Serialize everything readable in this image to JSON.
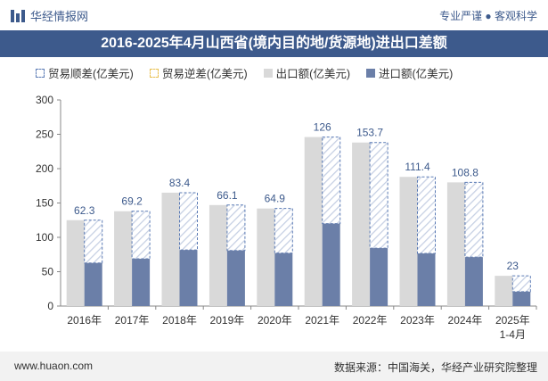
{
  "header": {
    "brand": "华经情报网",
    "tagline": "专业严谨 ● 客观科学"
  },
  "title": "2016-2025年4月山西省(境内目的地/货源地)进出口差额",
  "legend": [
    {
      "label": "贸易顺差(亿美元)",
      "color": "#ffffff",
      "border": "#5b7bb5"
    },
    {
      "label": "贸易逆差(亿美元)",
      "color": "#ffffff",
      "border": "#e8c050"
    },
    {
      "label": "出口额(亿美元)",
      "color": "#d9d9d9",
      "border": "#d9d9d9"
    },
    {
      "label": "进口额(亿美元)",
      "color": "#6b7fa8",
      "border": "#6b7fa8"
    }
  ],
  "footer": {
    "website": "www.huaon.com",
    "source": "数据来源：中国海关，华经产业研究院整理"
  },
  "chart_data": {
    "type": "bar",
    "categories": [
      "2016年",
      "2017年",
      "2018年",
      "2019年",
      "2020年",
      "2021年",
      "2022年",
      "2023年",
      "2024年",
      "2025年\n1-4月"
    ],
    "series": [
      {
        "name": "出口额(亿美元)",
        "values": [
          125,
          138,
          165,
          147,
          142,
          246,
          238,
          188,
          180,
          44
        ]
      },
      {
        "name": "进口额(亿美元)",
        "values": [
          62.7,
          68.8,
          81.6,
          80.9,
          77.1,
          120,
          84.3,
          76.6,
          71.2,
          21
        ]
      },
      {
        "name": "贸易顺差(亿美元)",
        "values": [
          62.3,
          69.2,
          83.4,
          66.1,
          64.9,
          126,
          153.7,
          111.4,
          108.8,
          23
        ]
      }
    ],
    "ylim": [
      0,
      300
    ],
    "yticks": [
      0,
      50,
      100,
      150,
      200,
      250,
      300
    ],
    "grid": false,
    "legend_position": "top",
    "colors": {
      "export": "#d9d9d9",
      "import": "#6b7fa8",
      "surplus_border": "#5b7bb5",
      "hatch": "#c5cfe3"
    }
  }
}
